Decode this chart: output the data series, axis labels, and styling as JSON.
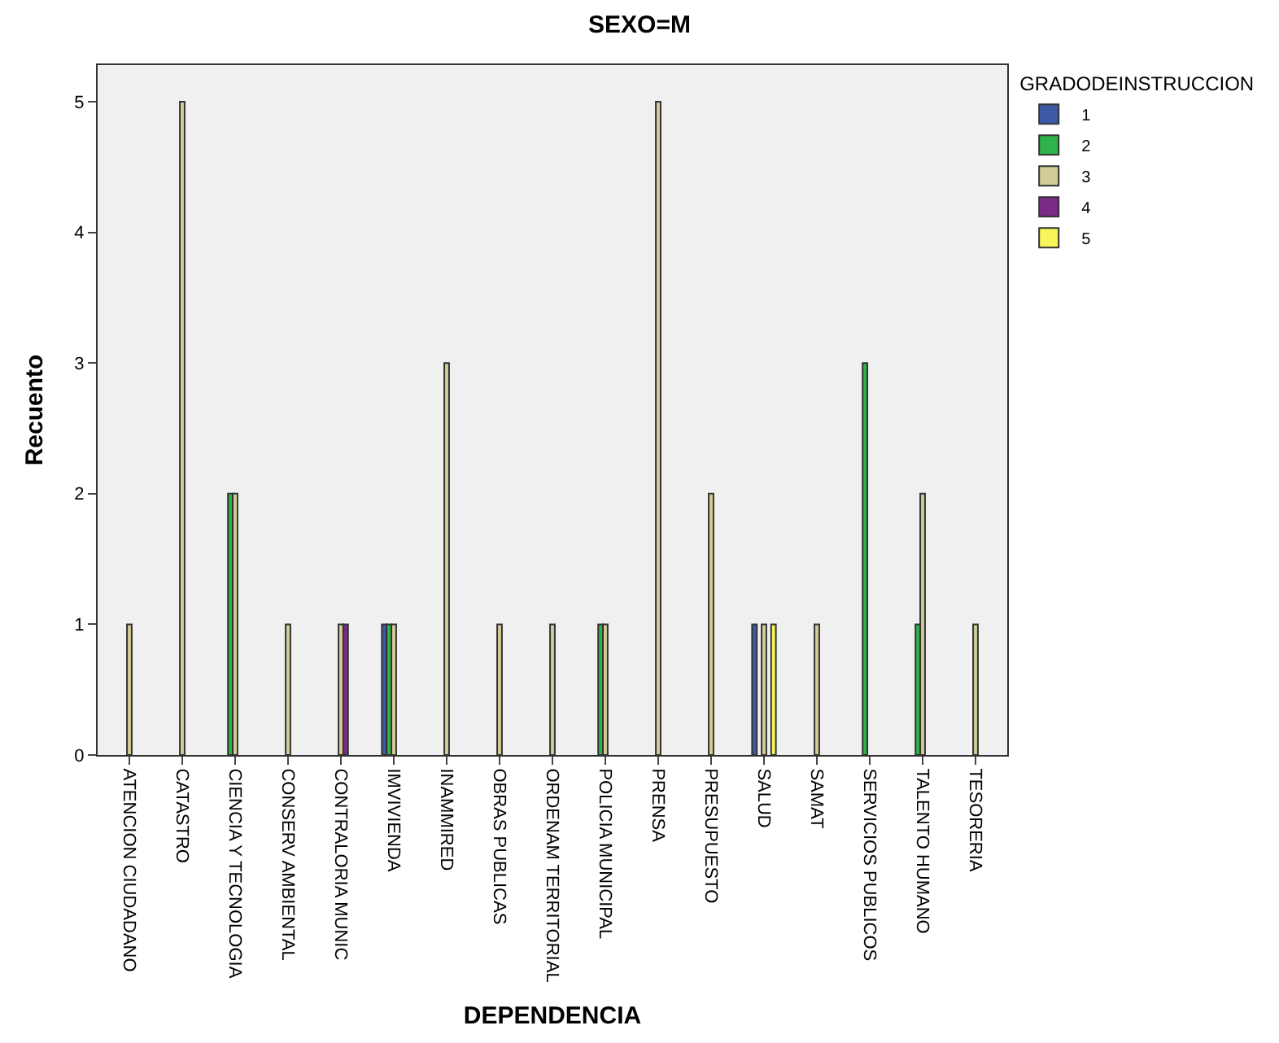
{
  "chart_data": {
    "type": "bar",
    "title": "SEXO=M",
    "xlabel": "DEPENDENCIA",
    "ylabel": "Recuento",
    "legend_title": "GRADODEINSTRUCCION",
    "legend": "top right",
    "grid": false,
    "categories": [
      "ATENCION CIUDADANO",
      "CATASTRO",
      "CIENCIA Y TECNOLOGIA",
      "CONSERV AMBIENTAL",
      "CONTRALORIA MUNIC",
      "IMVIVIENDA",
      "INAMMIRED",
      "OBRAS PUBLICAS",
      "ORDENAM TERRITORIAL",
      "POLICIA MUNICIPAL",
      "PRENSA",
      "PRESUPUESTO",
      "SALUD",
      "SAMAT",
      "SERVICIOS PUBLICOS",
      "TALENTO HUMANO",
      "TESORERIA"
    ],
    "ylim": [
      0,
      5.28
    ],
    "yticks": [
      0,
      1,
      2,
      3,
      4,
      5
    ],
    "series": [
      {
        "name": "1",
        "color": "#3d5aa8",
        "values": [
          null,
          null,
          null,
          null,
          null,
          1,
          null,
          null,
          null,
          null,
          null,
          null,
          1,
          null,
          null,
          null,
          null
        ]
      },
      {
        "name": "2",
        "color": "#2db34a",
        "values": [
          null,
          null,
          2,
          null,
          null,
          1,
          null,
          null,
          null,
          1,
          null,
          null,
          null,
          null,
          3,
          1,
          null
        ]
      },
      {
        "name": "3",
        "color": "#d3ce97",
        "values": [
          1,
          5,
          2,
          1,
          1,
          1,
          3,
          1,
          1,
          1,
          5,
          2,
          1,
          1,
          null,
          2,
          1
        ]
      },
      {
        "name": "4",
        "color": "#7b2a87",
        "values": [
          null,
          null,
          null,
          null,
          1,
          null,
          null,
          null,
          null,
          null,
          null,
          null,
          null,
          null,
          null,
          null,
          null
        ]
      },
      {
        "name": "5",
        "color": "#f7f55a",
        "values": [
          null,
          null,
          null,
          null,
          null,
          null,
          null,
          null,
          null,
          null,
          null,
          null,
          1,
          null,
          null,
          null,
          null
        ]
      }
    ]
  }
}
